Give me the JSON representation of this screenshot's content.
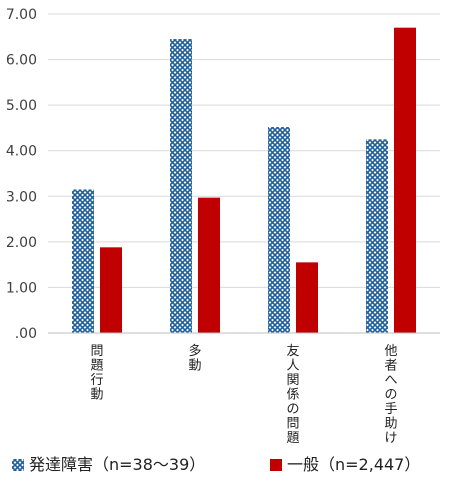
{
  "chart_data": {
    "type": "bar",
    "title": "",
    "xlabel": "",
    "ylabel": "",
    "ylim": [
      0,
      7
    ],
    "y_ticks": [
      ".00",
      "1.00",
      "2.00",
      "3.00",
      "4.00",
      "5.00",
      "6.00",
      "7.00"
    ],
    "grid": "horizontal",
    "legend_position": "bottom",
    "categories": [
      "問題行動",
      "多動",
      "友人関係の問題",
      "他者への手助け"
    ],
    "series": [
      {
        "name": "発達障害（n=38〜39）",
        "values": [
          3.15,
          6.45,
          4.52,
          4.25
        ],
        "color": "#1f5f9a",
        "pattern": "crosshatch"
      },
      {
        "name": "一般（n=2,447）",
        "values": [
          1.88,
          2.97,
          1.55,
          6.7
        ],
        "color": "#c00000",
        "pattern": "solid"
      }
    ]
  }
}
